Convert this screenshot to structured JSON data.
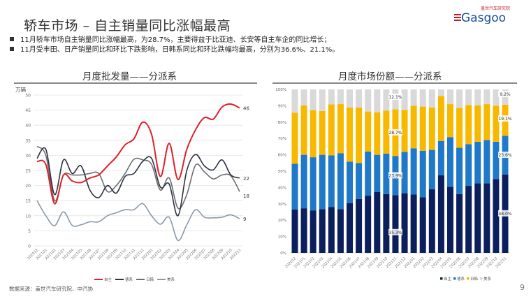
{
  "header": {
    "title": "轿车市场 – 自主销量同比涨幅最高",
    "logo_text": "Gasgoo",
    "logo_subtext": "盖世汽车研究院",
    "bullets": [
      "11月轿车市场自主销量同比涨幅最高，为28.7%，主要得益于比亚迪、长安等自主车企的同比增长；",
      "11月受丰田、日产销量同比和环比下跌影响，日韩系同比和环比跌幅均最高，分别为36.6%、21.1%。"
    ]
  },
  "footer": {
    "source": "数据来源：盖世汽车研究院、中汽协",
    "page": "9"
  },
  "chart_data": [
    {
      "type": "line",
      "title": "月度批发量——分派系",
      "ylabel": "万辆",
      "ylim": [
        0,
        50
      ],
      "yticks": [
        0,
        5,
        10,
        15,
        20,
        25,
        30,
        35,
        40,
        45,
        50
      ],
      "grid": true,
      "legend": "bottom",
      "categories": [
        "202012",
        "202101",
        "202102",
        "202103",
        "202104",
        "202105",
        "202106",
        "202107",
        "202108",
        "202109",
        "202110",
        "202111",
        "202112",
        "202201",
        "202202",
        "202203",
        "202204",
        "202205",
        "202206",
        "202207",
        "202208",
        "202209",
        "202210",
        "202211"
      ],
      "series": [
        {
          "name": "自主",
          "color": "#e0202a",
          "end_label": "46",
          "values": [
            28,
            27,
            14,
            23.5,
            21.5,
            21,
            22.5,
            23.5,
            26.5,
            29.5,
            33.5,
            35.5,
            41,
            37,
            23,
            34,
            22,
            32,
            38.5,
            42.5,
            42,
            46,
            47,
            45.7
          ]
        },
        {
          "name": "德系",
          "color": "#2b3240",
          "end_label": "22",
          "values": [
            29,
            32,
            17,
            28.5,
            24,
            26.5,
            18.5,
            16,
            20,
            17.5,
            23,
            24,
            28,
            29,
            19.5,
            20.5,
            10,
            25,
            30.3,
            26.5,
            25.2,
            28.5,
            23.5,
            22.5
          ]
        },
        {
          "name": "日韩",
          "color": "#6e6e6e",
          "end_label": "18",
          "values": [
            33,
            30,
            15,
            23.5,
            23.5,
            23.5,
            24,
            24,
            18,
            20,
            24,
            28.7,
            28.5,
            27,
            18.5,
            22.5,
            12.5,
            17,
            26.8,
            24.5,
            22.2,
            23.5,
            23.2,
            18
          ]
        },
        {
          "name": "美系",
          "color": "#8a9aa8",
          "end_label": "9",
          "values": [
            15,
            10,
            6.7,
            11.3,
            6.8,
            7,
            8,
            8,
            10,
            11,
            12,
            12,
            14,
            10,
            7.2,
            9.5,
            1.8,
            7,
            12,
            9.5,
            9.3,
            9.5,
            10.3,
            9
          ]
        }
      ]
    },
    {
      "type": "bar",
      "stacked": true,
      "title": "月度市场份额——分派系",
      "ylim": [
        0,
        100
      ],
      "yticks": [
        "0%",
        "10%",
        "20%",
        "30%",
        "40%",
        "50%",
        "60%",
        "70%",
        "80%",
        "90%",
        "100%"
      ],
      "legend": "bottom-right",
      "categories": [
        "202012",
        "202101",
        "202102",
        "202103",
        "202104",
        "202105",
        "202106",
        "202107",
        "202108",
        "202109",
        "202110",
        "202111",
        "202112",
        "202201",
        "202202",
        "202203",
        "202204",
        "202205",
        "202206",
        "202207",
        "202208",
        "202209",
        "202210",
        "202211"
      ],
      "series": [
        {
          "name": "自主",
          "color": "#0b1f5c",
          "values": [
            26.5,
            27.3,
            26,
            26.8,
            28,
            26.8,
            30.5,
            33,
            35,
            37.3,
            36,
            35.3,
            36.5,
            35.7,
            34,
            39,
            47.5,
            40.5,
            36,
            41,
            42.5,
            42.5,
            45.2,
            48
          ]
        },
        {
          "name": "德系",
          "color": "#1f78c8",
          "values": [
            28,
            32.7,
            32.5,
            33.2,
            31.7,
            34.2,
            25.3,
            22,
            27,
            22.7,
            24.7,
            23.9,
            25.3,
            28.3,
            28.5,
            24,
            21,
            30.3,
            28.3,
            25.5,
            25.5,
            26.5,
            22.8,
            23.6
          ]
        },
        {
          "name": "日韩",
          "color": "#f7b900",
          "values": [
            31.3,
            30.2,
            28.8,
            26.8,
            31.1,
            30,
            33.2,
            34,
            24.5,
            26,
            26.3,
            28.7,
            25.7,
            26,
            27,
            26,
            27.5,
            20.2,
            24.4,
            24,
            22.3,
            22,
            22,
            19.1
          ]
        },
        {
          "name": "美系",
          "color": "#d9d9d9",
          "values": [
            14.2,
            9.8,
            12.7,
            13.2,
            9.2,
            9,
            11,
            11,
            13.5,
            14,
            13,
            12.1,
            12.5,
            10,
            10.5,
            11,
            4,
            9,
            11.3,
            9.5,
            9.7,
            9,
            10,
            9.2
          ]
        }
      ],
      "data_labels": [
        {
          "category": "202111",
          "series": "自主",
          "text": "35.3%"
        },
        {
          "category": "202111",
          "series": "德系",
          "text": "23.9%"
        },
        {
          "category": "202111",
          "series": "日韩",
          "text": "28.7%"
        },
        {
          "category": "202111",
          "series": "美系",
          "text": "12.1%"
        },
        {
          "category": "202211",
          "series": "自主",
          "text": "48.0%"
        },
        {
          "category": "202211",
          "series": "德系",
          "text": "23.6%"
        },
        {
          "category": "202211",
          "series": "日韩",
          "text": "19.1%"
        },
        {
          "category": "202211",
          "series": "美系",
          "text": "9.2%"
        }
      ]
    }
  ]
}
